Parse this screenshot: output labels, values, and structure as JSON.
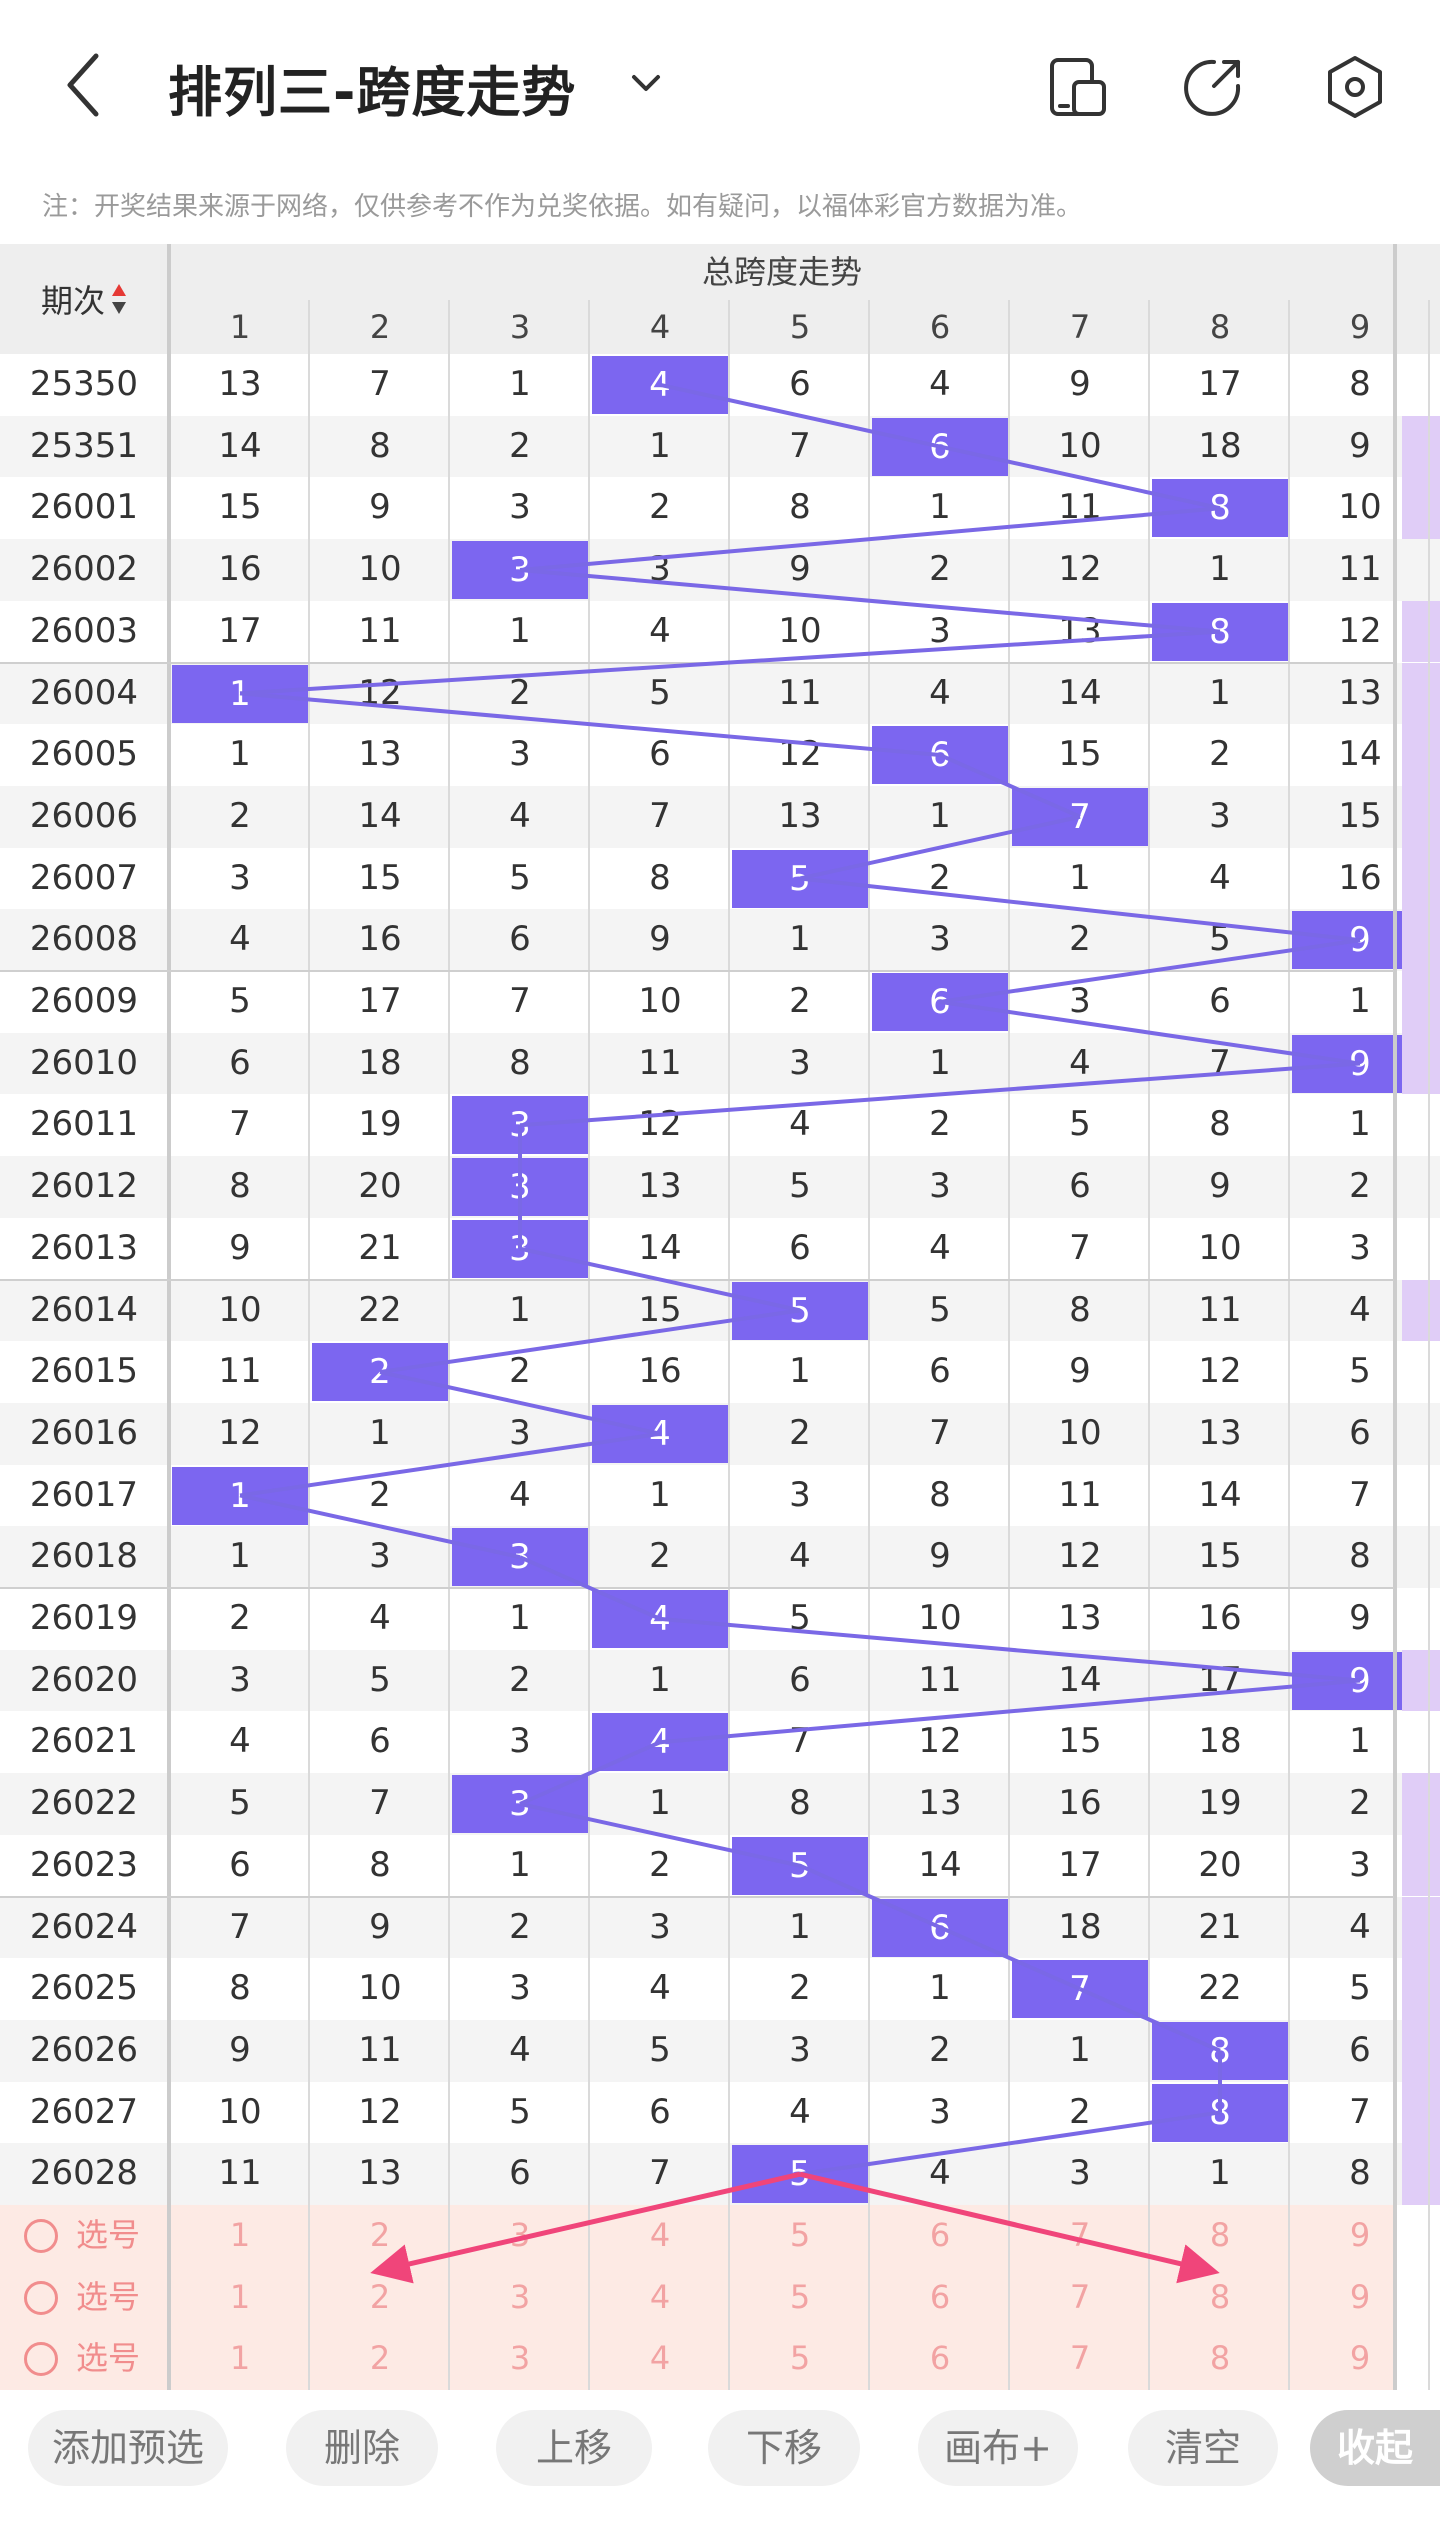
{
  "header": {
    "title": "排列三-跨度走势",
    "note": "注：开奖结果来源于网络，仅供参考不作为兑奖依据。如有疑问，以福体彩官方数据为准。",
    "icons": [
      "back-icon",
      "chevron-down-icon",
      "split-screen-icon",
      "share-icon",
      "settings-icon"
    ]
  },
  "table": {
    "issue_header": "期次",
    "section_title": "总跨度走势",
    "columns": [
      "1",
      "2",
      "3",
      "4",
      "5",
      "6",
      "7",
      "8",
      "9"
    ],
    "rows": [
      {
        "issue": "25350",
        "cells": [
          "13",
          "7",
          "1",
          "4",
          "6",
          "4",
          "9",
          "17",
          "8"
        ],
        "hit": 4
      },
      {
        "issue": "25351",
        "cells": [
          "14",
          "8",
          "2",
          "1",
          "7",
          "6",
          "10",
          "18",
          "9"
        ],
        "hit": 6
      },
      {
        "issue": "26001",
        "cells": [
          "15",
          "9",
          "3",
          "2",
          "8",
          "1",
          "11",
          "8",
          "10"
        ],
        "hit": 8
      },
      {
        "issue": "26002",
        "cells": [
          "16",
          "10",
          "3",
          "3",
          "9",
          "2",
          "12",
          "1",
          "11"
        ],
        "hit": 3
      },
      {
        "issue": "26003",
        "cells": [
          "17",
          "11",
          "1",
          "4",
          "10",
          "3",
          "13",
          "8",
          "12"
        ],
        "hit": 8
      },
      {
        "issue": "26004",
        "cells": [
          "1",
          "12",
          "2",
          "5",
          "11",
          "4",
          "14",
          "1",
          "13"
        ],
        "hit": 1
      },
      {
        "issue": "26005",
        "cells": [
          "1",
          "13",
          "3",
          "6",
          "12",
          "6",
          "15",
          "2",
          "14"
        ],
        "hit": 6
      },
      {
        "issue": "26006",
        "cells": [
          "2",
          "14",
          "4",
          "7",
          "13",
          "1",
          "7",
          "3",
          "15"
        ],
        "hit": 7
      },
      {
        "issue": "26007",
        "cells": [
          "3",
          "15",
          "5",
          "8",
          "5",
          "2",
          "1",
          "4",
          "16"
        ],
        "hit": 5
      },
      {
        "issue": "26008",
        "cells": [
          "4",
          "16",
          "6",
          "9",
          "1",
          "3",
          "2",
          "5",
          "9"
        ],
        "hit": 9
      },
      {
        "issue": "26009",
        "cells": [
          "5",
          "17",
          "7",
          "10",
          "2",
          "6",
          "3",
          "6",
          "1"
        ],
        "hit": 6
      },
      {
        "issue": "26010",
        "cells": [
          "6",
          "18",
          "8",
          "11",
          "3",
          "1",
          "4",
          "7",
          "9"
        ],
        "hit": 9
      },
      {
        "issue": "26011",
        "cells": [
          "7",
          "19",
          "3",
          "12",
          "4",
          "2",
          "5",
          "8",
          "1"
        ],
        "hit": 3
      },
      {
        "issue": "26012",
        "cells": [
          "8",
          "20",
          "3",
          "13",
          "5",
          "3",
          "6",
          "9",
          "2"
        ],
        "hit": 3
      },
      {
        "issue": "26013",
        "cells": [
          "9",
          "21",
          "3",
          "14",
          "6",
          "4",
          "7",
          "10",
          "3"
        ],
        "hit": 3
      },
      {
        "issue": "26014",
        "cells": [
          "10",
          "22",
          "1",
          "15",
          "5",
          "5",
          "8",
          "11",
          "4"
        ],
        "hit": 5
      },
      {
        "issue": "26015",
        "cells": [
          "11",
          "2",
          "2",
          "16",
          "1",
          "6",
          "9",
          "12",
          "5"
        ],
        "hit": 2
      },
      {
        "issue": "26016",
        "cells": [
          "12",
          "1",
          "3",
          "4",
          "2",
          "7",
          "10",
          "13",
          "6"
        ],
        "hit": 4
      },
      {
        "issue": "26017",
        "cells": [
          "1",
          "2",
          "4",
          "1",
          "3",
          "8",
          "11",
          "14",
          "7"
        ],
        "hit": 1
      },
      {
        "issue": "26018",
        "cells": [
          "1",
          "3",
          "3",
          "2",
          "4",
          "9",
          "12",
          "15",
          "8"
        ],
        "hit": 3
      },
      {
        "issue": "26019",
        "cells": [
          "2",
          "4",
          "1",
          "4",
          "5",
          "10",
          "13",
          "16",
          "9"
        ],
        "hit": 4
      },
      {
        "issue": "26020",
        "cells": [
          "3",
          "5",
          "2",
          "1",
          "6",
          "11",
          "14",
          "17",
          "9"
        ],
        "hit": 9
      },
      {
        "issue": "26021",
        "cells": [
          "4",
          "6",
          "3",
          "4",
          "7",
          "12",
          "15",
          "18",
          "1"
        ],
        "hit": 4
      },
      {
        "issue": "26022",
        "cells": [
          "5",
          "7",
          "3",
          "1",
          "8",
          "13",
          "16",
          "19",
          "2"
        ],
        "hit": 3
      },
      {
        "issue": "26023",
        "cells": [
          "6",
          "8",
          "1",
          "2",
          "5",
          "14",
          "17",
          "20",
          "3"
        ],
        "hit": 5
      },
      {
        "issue": "26024",
        "cells": [
          "7",
          "9",
          "2",
          "3",
          "1",
          "6",
          "18",
          "21",
          "4"
        ],
        "hit": 6
      },
      {
        "issue": "26025",
        "cells": [
          "8",
          "10",
          "3",
          "4",
          "2",
          "1",
          "7",
          "22",
          "5"
        ],
        "hit": 7
      },
      {
        "issue": "26026",
        "cells": [
          "9",
          "11",
          "4",
          "5",
          "3",
          "2",
          "1",
          "8",
          "6"
        ],
        "hit": 8
      },
      {
        "issue": "26027",
        "cells": [
          "10",
          "12",
          "5",
          "6",
          "4",
          "3",
          "2",
          "8",
          "7"
        ],
        "hit": 8
      },
      {
        "issue": "26028",
        "cells": [
          "11",
          "13",
          "6",
          "7",
          "5",
          "4",
          "3",
          "1",
          "8"
        ],
        "hit": 5
      }
    ],
    "sidebar_marked_rows": [
      1,
      2,
      4,
      5,
      6,
      7,
      8,
      9,
      10,
      11,
      15,
      21,
      23,
      24,
      25,
      26,
      27,
      28,
      29
    ],
    "select_rows": [
      {
        "label": "选号",
        "nums": [
          "1",
          "2",
          "3",
          "4",
          "5",
          "6",
          "7",
          "8",
          "9"
        ]
      },
      {
        "label": "选号",
        "nums": [
          "1",
          "2",
          "3",
          "4",
          "5",
          "6",
          "7",
          "8",
          "9"
        ]
      },
      {
        "label": "选号",
        "nums": [
          "1",
          "2",
          "3",
          "4",
          "5",
          "6",
          "7",
          "8",
          "9"
        ]
      }
    ]
  },
  "toolbar": {
    "buttons": [
      "添加预选",
      "删除",
      "上移",
      "下移",
      "画布+",
      "清空"
    ],
    "collapse": "收起"
  },
  "colors": {
    "hit": "#7c66f0",
    "trend_line": "#7a68e6",
    "select_bg": "#fdeae4",
    "annotation_arrow": "#f0457a"
  }
}
